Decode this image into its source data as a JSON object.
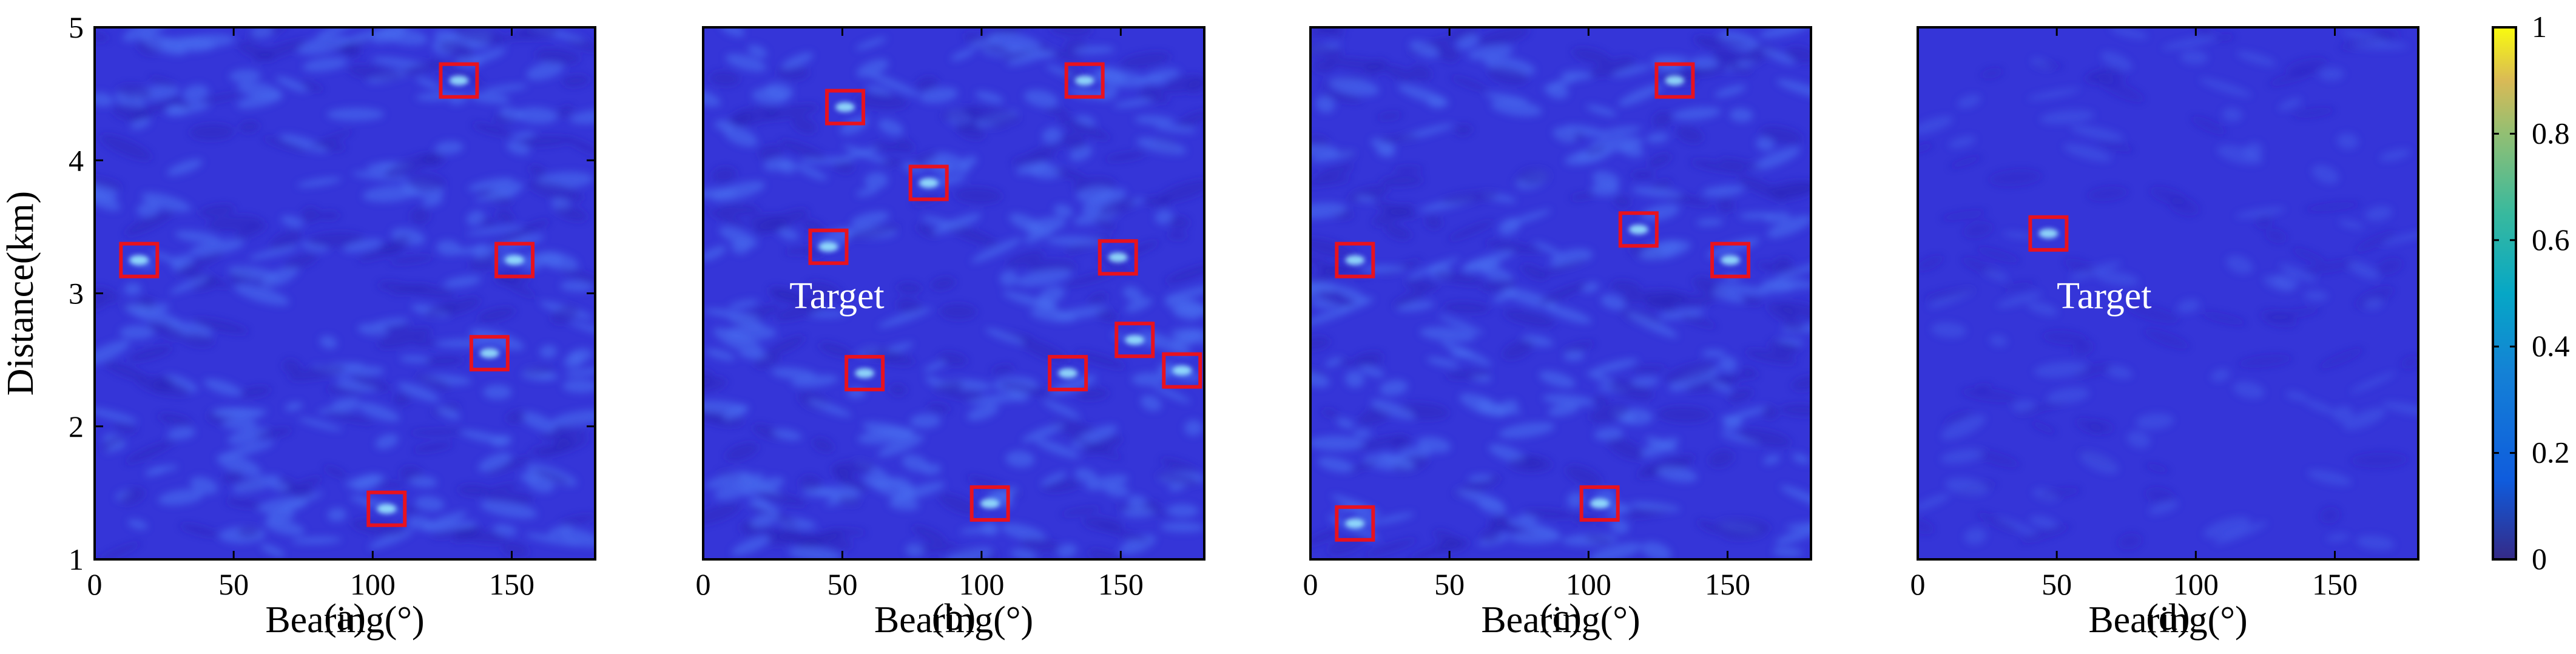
{
  "chart_data": [
    {
      "type": "heatmap",
      "panel_label": "(a)",
      "xlabel": "Bearing(°)",
      "ylabel": "Distance(km)",
      "xlim": [
        0,
        180
      ],
      "ylim": [
        1,
        5
      ],
      "xticks": [
        "0",
        "50",
        "100",
        "150"
      ],
      "yticks": [
        "1",
        "2",
        "3",
        "4",
        "5"
      ],
      "marked_points": [
        {
          "bearing": 16,
          "distance": 3.25
        },
        {
          "bearing": 131,
          "distance": 4.6
        },
        {
          "bearing": 151,
          "distance": 3.25
        },
        {
          "bearing": 142,
          "distance": 2.55
        },
        {
          "bearing": 105,
          "distance": 1.38
        }
      ],
      "annotations": []
    },
    {
      "type": "heatmap",
      "panel_label": "(b)",
      "xlabel": "Bearing(°)",
      "ylabel": "",
      "xlim": [
        0,
        180
      ],
      "ylim": [
        1,
        5
      ],
      "xticks": [
        "0",
        "50",
        "100",
        "150"
      ],
      "yticks": [],
      "marked_points": [
        {
          "bearing": 51,
          "distance": 4.4
        },
        {
          "bearing": 137,
          "distance": 4.6
        },
        {
          "bearing": 81,
          "distance": 3.83
        },
        {
          "bearing": 45,
          "distance": 3.35
        },
        {
          "bearing": 149,
          "distance": 3.27
        },
        {
          "bearing": 58,
          "distance": 2.4
        },
        {
          "bearing": 131,
          "distance": 2.4
        },
        {
          "bearing": 155,
          "distance": 2.65
        },
        {
          "bearing": 172,
          "distance": 2.42
        },
        {
          "bearing": 103,
          "distance": 1.42
        }
      ],
      "annotations": [
        {
          "text": "Target",
          "bearing": 31,
          "distance": 2.98
        }
      ]
    },
    {
      "type": "heatmap",
      "panel_label": "(c)",
      "xlabel": "Bearing(°)",
      "ylabel": "",
      "xlim": [
        0,
        180
      ],
      "ylim": [
        1,
        5
      ],
      "xticks": [
        "0",
        "50",
        "100",
        "150"
      ],
      "yticks": [],
      "marked_points": [
        {
          "bearing": 16,
          "distance": 3.25
        },
        {
          "bearing": 131,
          "distance": 4.6
        },
        {
          "bearing": 118,
          "distance": 3.48
        },
        {
          "bearing": 151,
          "distance": 3.25
        },
        {
          "bearing": 16,
          "distance": 1.27
        },
        {
          "bearing": 104,
          "distance": 1.42
        }
      ],
      "annotations": []
    },
    {
      "type": "heatmap",
      "panel_label": "(d)",
      "xlabel": "Bearing(°)",
      "ylabel": "",
      "xlim": [
        0,
        180
      ],
      "ylim": [
        1,
        5
      ],
      "xticks": [
        "0",
        "50",
        "100",
        "150"
      ],
      "yticks": [],
      "marked_points": [
        {
          "bearing": 47,
          "distance": 3.45
        }
      ],
      "annotations": [
        {
          "text": "Target",
          "bearing": 50,
          "distance": 2.98
        }
      ],
      "colorbar": {
        "ticks": [
          "0",
          "0.2",
          "0.4",
          "0.6",
          "0.8",
          "1"
        ],
        "range": [
          0,
          1
        ]
      }
    }
  ],
  "colors": {
    "background": "#3535d8",
    "ripple_light": "#4a6ef0",
    "ripple_dark": "#2a26b8",
    "marker_box": "#e8121e",
    "peak": "#9ff2ff"
  }
}
